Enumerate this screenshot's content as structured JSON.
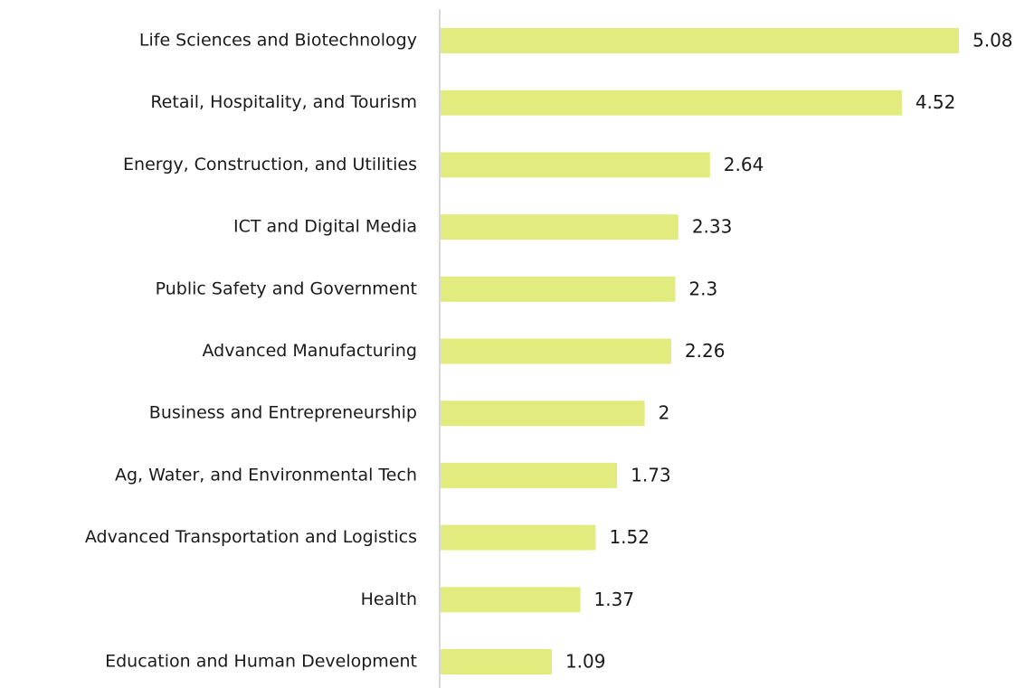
{
  "chart_data": {
    "type": "bar",
    "orientation": "horizontal",
    "categories": [
      "Life Sciences and Biotechnology",
      "Retail, Hospitality, and Tourism",
      "Energy, Construction, and Utilities",
      "ICT and Digital Media",
      "Public Safety and Government",
      "Advanced Manufacturing",
      "Business and Entrepreneurship",
      "Ag, Water, and Environmental Tech",
      "Advanced Transportation and Logistics",
      "Health",
      "Education and Human Development"
    ],
    "values": [
      5.08,
      4.52,
      2.64,
      2.33,
      2.3,
      2.26,
      2,
      1.73,
      1.52,
      1.37,
      1.09
    ],
    "color": "#e2ec7e"
  }
}
